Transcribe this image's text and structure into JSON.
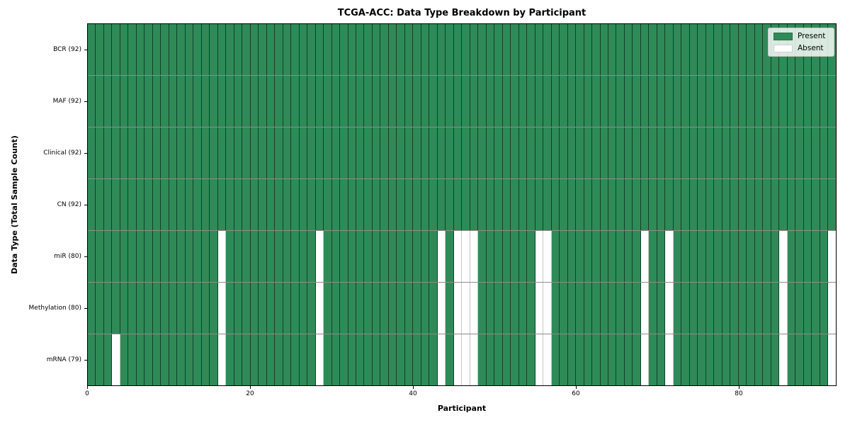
{
  "chart_data": {
    "type": "heatmap",
    "title": "TCGA-ACC: Data Type Breakdown by Participant",
    "xlabel": "Participant",
    "ylabel": "Data Type (Total Sample Count)",
    "n_participants": 92,
    "x_ticks": [
      0,
      20,
      40,
      60,
      80
    ],
    "rows": [
      {
        "label": "BCR (92)",
        "present_count": 92,
        "absent_participants": []
      },
      {
        "label": "MAF (92)",
        "present_count": 92,
        "absent_participants": []
      },
      {
        "label": "Clinical (92)",
        "present_count": 92,
        "absent_participants": []
      },
      {
        "label": "CN (92)",
        "present_count": 92,
        "absent_participants": []
      },
      {
        "label": "miR (80)",
        "present_count": 80,
        "absent_participants": [
          16,
          28,
          43,
          45,
          46,
          47,
          55,
          56,
          68,
          71,
          85,
          91
        ]
      },
      {
        "label": "Methylation (80)",
        "present_count": 80,
        "absent_participants": [
          16,
          28,
          43,
          45,
          46,
          47,
          55,
          56,
          68,
          71,
          85,
          91
        ]
      },
      {
        "label": "mRNA (79)",
        "present_count": 79,
        "absent_participants": [
          3,
          16,
          28,
          43,
          45,
          46,
          47,
          55,
          56,
          68,
          71,
          85,
          91
        ]
      }
    ],
    "legend": {
      "position": "upper right",
      "items": [
        {
          "label": "Present",
          "color": "#2e8b57"
        },
        {
          "label": "Absent",
          "color": "#ffffff"
        }
      ]
    },
    "colors": {
      "present": "#2e8b57",
      "absent": "#ffffff",
      "cell_edge": "rgba(0,0,0,0.55)",
      "background": "#ffffff"
    },
    "grid": "cell-borders",
    "legend_visible": true
  }
}
